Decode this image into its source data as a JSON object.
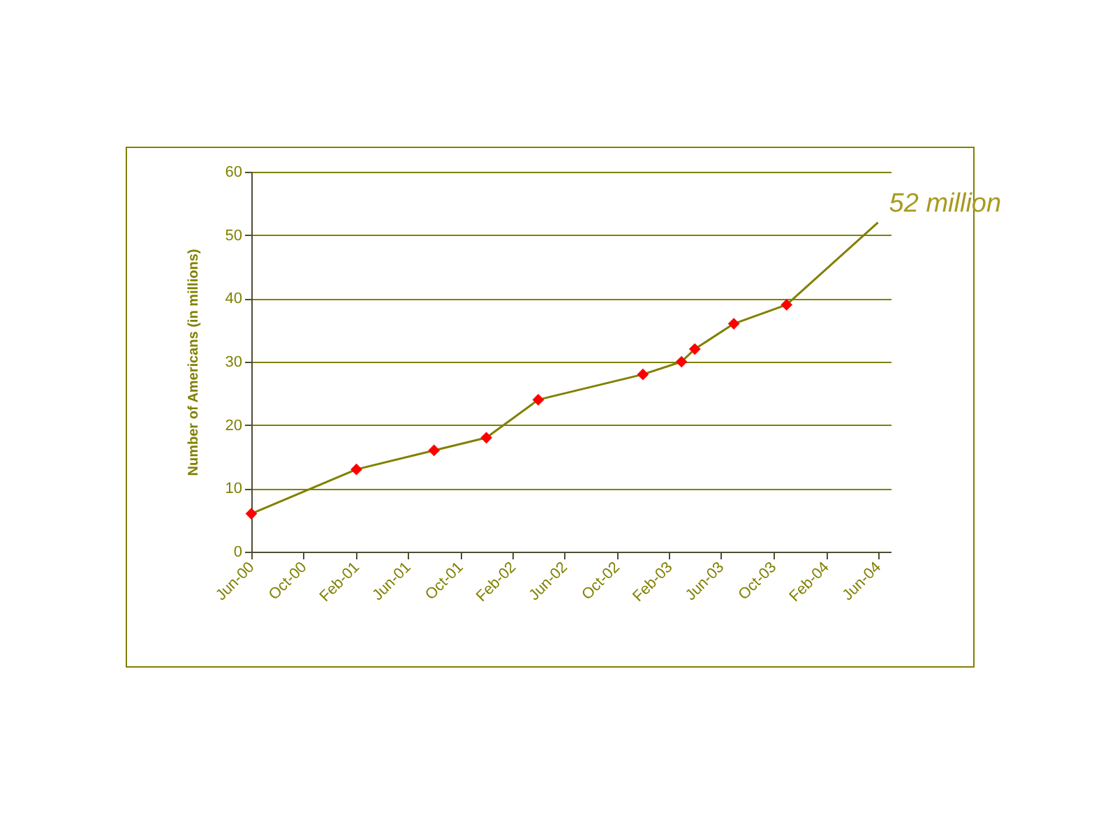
{
  "chart_data": {
    "type": "line",
    "ylabel": "Number of Americans (in millions)",
    "x": [
      "2000-06",
      "2001-02",
      "2001-08",
      "2001-12",
      "2002-04",
      "2002-12",
      "2003-03",
      "2003-04",
      "2003-07",
      "2003-11",
      "2004-06"
    ],
    "series": [
      {
        "color": "#808000",
        "marker": "none",
        "values": [
          6,
          13,
          16,
          18,
          24,
          28,
          30,
          32,
          36,
          39,
          52
        ]
      },
      {
        "type": "scatter",
        "color": "#ff0000",
        "marker": "diamond",
        "x": [
          "2000-06",
          "2001-02",
          "2001-08",
          "2001-12",
          "2002-04",
          "2002-12",
          "2003-03",
          "2003-04",
          "2003-07",
          "2003-11"
        ],
        "values": [
          6,
          13,
          16,
          18,
          24,
          28,
          30,
          32,
          36,
          39
        ]
      }
    ],
    "xlim": [
      "2000-06",
      "2004-07"
    ],
    "xticks": [
      {
        "value": "2000-06",
        "label": "Jun-00"
      },
      {
        "value": "2000-10",
        "label": "Oct-00"
      },
      {
        "value": "2001-02",
        "label": "Feb-01"
      },
      {
        "value": "2001-06",
        "label": "Jun-01"
      },
      {
        "value": "2001-10",
        "label": "Oct-01"
      },
      {
        "value": "2002-02",
        "label": "Feb-02"
      },
      {
        "value": "2002-06",
        "label": "Jun-02"
      },
      {
        "value": "2002-10",
        "label": "Oct-02"
      },
      {
        "value": "2003-02",
        "label": "Feb-03"
      },
      {
        "value": "2003-06",
        "label": "Jun-03"
      },
      {
        "value": "2003-10",
        "label": "Oct-03"
      },
      {
        "value": "2004-02",
        "label": "Feb-04"
      },
      {
        "value": "2004-06",
        "label": "Jun-04"
      }
    ],
    "ylim": [
      0,
      60
    ],
    "yticks": [
      0,
      10,
      20,
      30,
      40,
      50,
      60
    ],
    "grid": "y",
    "annotations": [
      {
        "text": "52 million",
        "x": "2004-06",
        "y": 52
      }
    ]
  }
}
